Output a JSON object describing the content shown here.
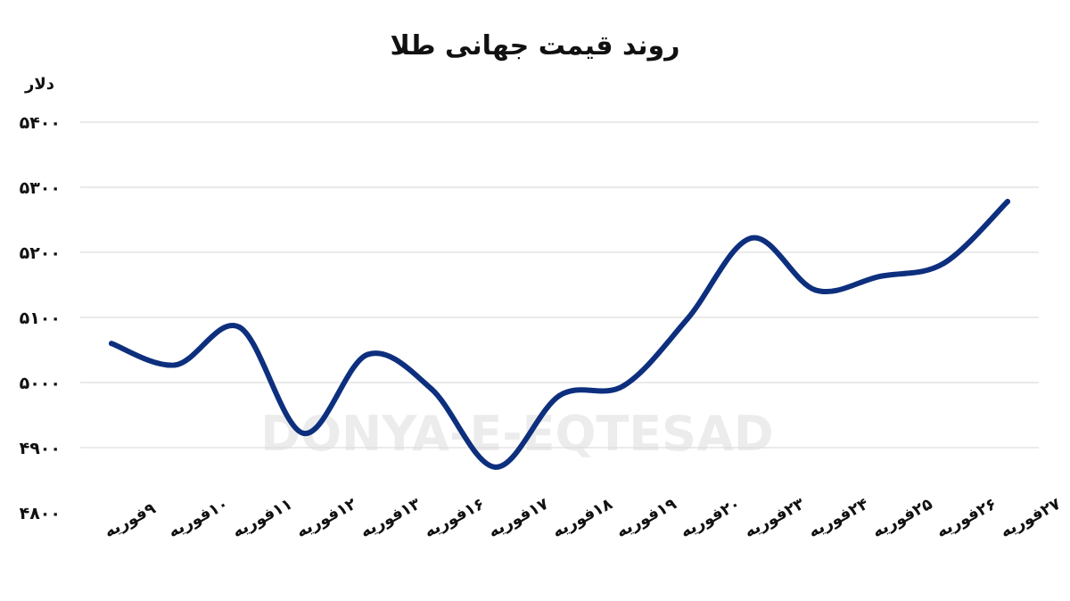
{
  "chart_data": {
    "type": "line",
    "title": "روند قیمت جهانی طلا",
    "ylabel": "دلار",
    "xlabel": "",
    "categories": [
      "۹فوریه",
      "۱۰فوریه",
      "۱۱فوریه",
      "۱۲فوریه",
      "۱۳فوریه",
      "۱۶فوریه",
      "۱۷فوریه",
      "۱۸فوریه",
      "۱۹فوریه",
      "۲۰فوریه",
      "۲۳فوریه",
      "۲۴فوریه",
      "۲۵فوریه",
      "۲۶فوریه",
      "۲۷فوریه"
    ],
    "series": [
      {
        "values": [
          5060,
          5027,
          5085,
          4922,
          5043,
          4990,
          4870,
          4980,
          4995,
          5098,
          5222,
          5142,
          5163,
          5183,
          5278
        ]
      }
    ],
    "ylim": [
      4800,
      5400
    ],
    "yticks": [
      4800,
      4900,
      5000,
      5100,
      5200,
      5300,
      5400
    ],
    "ytick_labels": [
      "۴۸۰۰",
      "۴۹۰۰",
      "۵۰۰۰",
      "۵۱۰۰",
      "۵۲۰۰",
      "۵۳۰۰",
      "۵۴۰۰"
    ],
    "grid": true,
    "legend": "none",
    "watermark": "DONYA-E-EQTESAD",
    "colors": {
      "line": "#0d2f7e",
      "grid": "#dddddd",
      "text": "#111111",
      "watermark": "#ececec"
    }
  }
}
